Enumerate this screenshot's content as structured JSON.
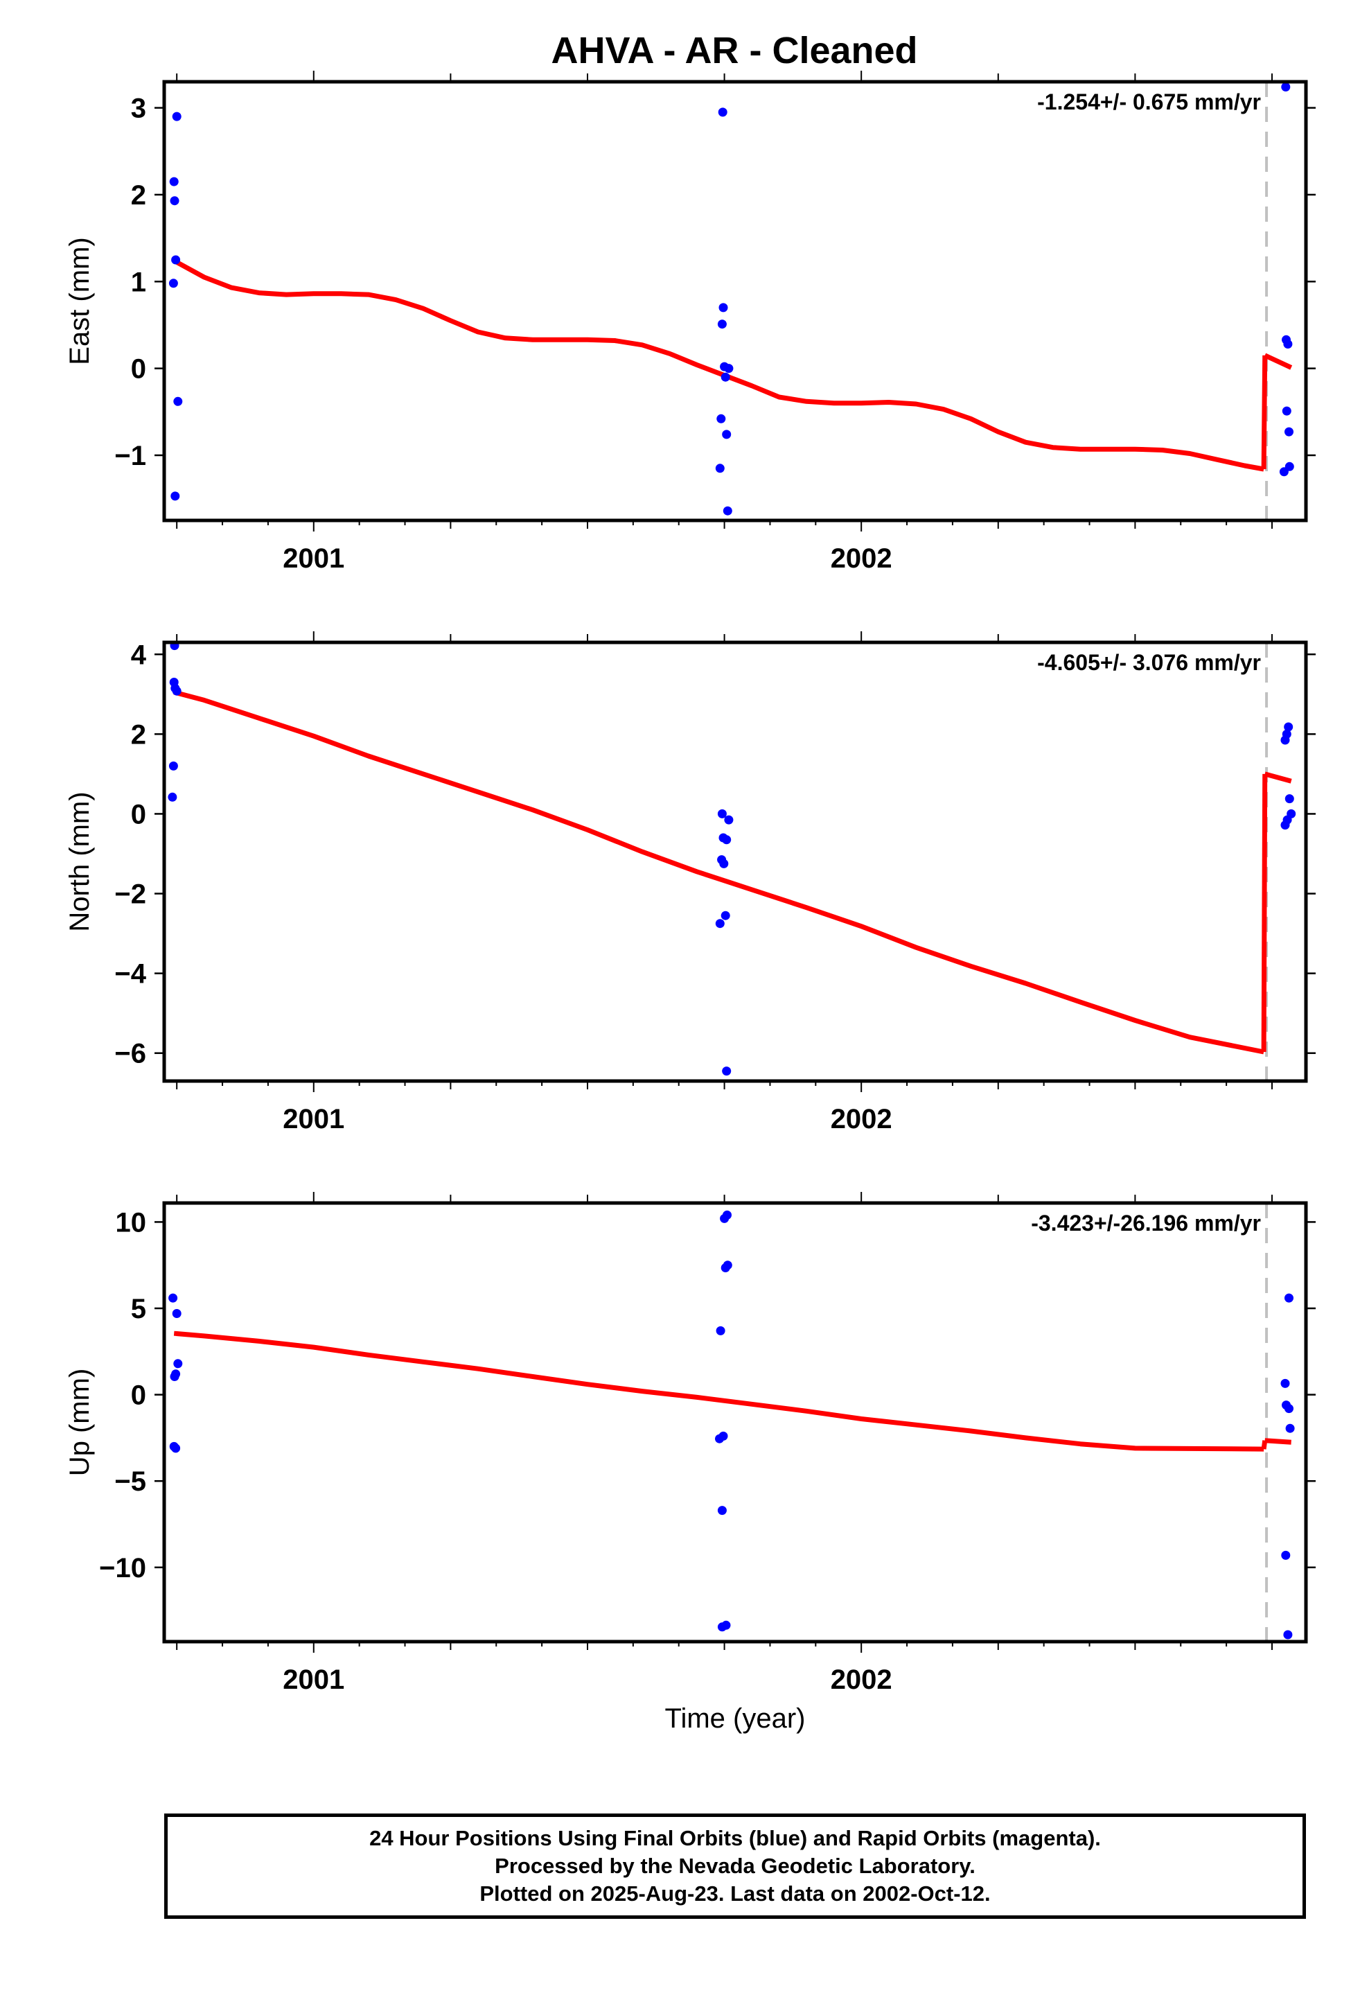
{
  "title": "AHVA  - AR - Cleaned",
  "xlabel": "Time (year)",
  "footer": {
    "line1": "24 Hour Positions Using Final Orbits (blue) and Rapid Orbits (magenta).",
    "line2": "Processed by the Nevada Geodetic Laboratory.",
    "line3": "Plotted on 2025-Aug-23. Last data on 2002-Oct-12."
  },
  "colors": {
    "points": "#0000ff",
    "fit": "#ff0000",
    "break": "#c0c0c0",
    "frame": "#000000"
  },
  "chart_data": [
    {
      "type": "scatter",
      "ylabel": "East (mm)",
      "rate_label": "-1.254+/- 0.675 mm/yr",
      "xlim": [
        2000.727,
        2002.812
      ],
      "ylim": [
        -1.75,
        3.3
      ],
      "xticks": [
        2001,
        2002
      ],
      "yticks": [
        -1,
        0,
        1,
        2,
        3
      ],
      "ytick_labels": [
        "−1",
        "0",
        "1",
        "2",
        "3"
      ],
      "break_x": 2002.74,
      "points": [
        [
          2000.745,
          2.15
        ],
        [
          2000.746,
          1.93
        ],
        [
          2000.748,
          1.25
        ],
        [
          2000.744,
          0.98
        ],
        [
          2000.75,
          2.9
        ],
        [
          2000.752,
          -0.38
        ],
        [
          2000.747,
          -1.47
        ],
        [
          2001.747,
          2.95
        ],
        [
          2001.748,
          0.7
        ],
        [
          2001.746,
          0.51
        ],
        [
          2001.75,
          0.02
        ],
        [
          2001.752,
          -0.1
        ],
        [
          2001.758,
          0.0
        ],
        [
          2001.744,
          -0.58
        ],
        [
          2001.754,
          -0.76
        ],
        [
          2001.742,
          -1.15
        ],
        [
          2001.756,
          -1.64
        ],
        [
          2002.775,
          3.24
        ],
        [
          2002.776,
          0.33
        ],
        [
          2002.779,
          0.28
        ],
        [
          2002.777,
          -0.49
        ],
        [
          2002.781,
          -0.73
        ],
        [
          2002.772,
          -1.19
        ],
        [
          2002.782,
          -1.13
        ]
      ],
      "fit_segments": [
        [
          [
            2000.745,
            1.24
          ],
          [
            2000.8,
            1.05
          ],
          [
            2000.85,
            0.93
          ],
          [
            2000.9,
            0.87
          ],
          [
            2000.95,
            0.85
          ],
          [
            2001.0,
            0.86
          ],
          [
            2001.05,
            0.86
          ],
          [
            2001.1,
            0.85
          ],
          [
            2001.15,
            0.79
          ],
          [
            2001.2,
            0.69
          ],
          [
            2001.25,
            0.55
          ],
          [
            2001.3,
            0.42
          ],
          [
            2001.35,
            0.35
          ],
          [
            2001.4,
            0.33
          ],
          [
            2001.45,
            0.33
          ],
          [
            2001.5,
            0.33
          ],
          [
            2001.55,
            0.32
          ],
          [
            2001.6,
            0.27
          ],
          [
            2001.65,
            0.17
          ],
          [
            2001.7,
            0.04
          ],
          [
            2001.75,
            -0.08
          ],
          [
            2001.8,
            -0.2
          ],
          [
            2001.85,
            -0.33
          ],
          [
            2001.9,
            -0.38
          ],
          [
            2001.95,
            -0.4
          ],
          [
            2002.0,
            -0.4
          ],
          [
            2002.05,
            -0.39
          ],
          [
            2002.1,
            -0.41
          ],
          [
            2002.15,
            -0.47
          ],
          [
            2002.2,
            -0.58
          ],
          [
            2002.25,
            -0.73
          ],
          [
            2002.3,
            -0.85
          ],
          [
            2002.35,
            -0.91
          ],
          [
            2002.4,
            -0.93
          ],
          [
            2002.45,
            -0.93
          ],
          [
            2002.5,
            -0.93
          ],
          [
            2002.55,
            -0.94
          ],
          [
            2002.6,
            -0.98
          ],
          [
            2002.65,
            -1.05
          ],
          [
            2002.7,
            -1.12
          ],
          [
            2002.735,
            -1.16
          ]
        ],
        [
          [
            2002.737,
            0.15
          ],
          [
            2002.785,
            0.01
          ]
        ]
      ]
    },
    {
      "type": "scatter",
      "ylabel": "North (mm)",
      "rate_label": "-4.605+/- 3.076 mm/yr",
      "xlim": [
        2000.727,
        2002.812
      ],
      "ylim": [
        -6.7,
        4.3
      ],
      "xticks": [
        2001,
        2002
      ],
      "yticks": [
        -6,
        -4,
        -2,
        0,
        2,
        4
      ],
      "ytick_labels": [
        "−6",
        "−4",
        "−2",
        "0",
        "2",
        "4"
      ],
      "break_x": 2002.74,
      "points": [
        [
          2000.746,
          4.22
        ],
        [
          2000.745,
          3.3
        ],
        [
          2000.747,
          3.15
        ],
        [
          2000.75,
          3.08
        ],
        [
          2000.744,
          1.2
        ],
        [
          2000.742,
          0.42
        ],
        [
          2001.746,
          0.0
        ],
        [
          2001.748,
          -0.6
        ],
        [
          2001.754,
          -0.65
        ],
        [
          2001.758,
          -0.15
        ],
        [
          2001.745,
          -1.15
        ],
        [
          2001.749,
          -1.25
        ],
        [
          2001.742,
          -2.75
        ],
        [
          2001.752,
          -2.55
        ],
        [
          2001.754,
          -6.45
        ],
        [
          2002.774,
          1.85
        ],
        [
          2002.777,
          2.0
        ],
        [
          2002.78,
          2.18
        ],
        [
          2002.782,
          0.38
        ],
        [
          2002.785,
          0.0
        ],
        [
          2002.778,
          -0.15
        ],
        [
          2002.774,
          -0.28
        ]
      ],
      "fit_segments": [
        [
          [
            2000.745,
            3.05
          ],
          [
            2000.8,
            2.85
          ],
          [
            2000.9,
            2.4
          ],
          [
            2001.0,
            1.95
          ],
          [
            2001.1,
            1.45
          ],
          [
            2001.2,
            1.0
          ],
          [
            2001.3,
            0.55
          ],
          [
            2001.4,
            0.1
          ],
          [
            2001.5,
            -0.4
          ],
          [
            2001.6,
            -0.95
          ],
          [
            2001.7,
            -1.45
          ],
          [
            2001.8,
            -1.9
          ],
          [
            2001.9,
            -2.35
          ],
          [
            2002.0,
            -2.82
          ],
          [
            2002.1,
            -3.35
          ],
          [
            2002.2,
            -3.82
          ],
          [
            2002.3,
            -4.25
          ],
          [
            2002.4,
            -4.72
          ],
          [
            2002.5,
            -5.18
          ],
          [
            2002.6,
            -5.6
          ],
          [
            2002.735,
            -5.97
          ]
        ],
        [
          [
            2002.737,
            1.0
          ],
          [
            2002.785,
            0.82
          ]
        ]
      ]
    },
    {
      "type": "scatter",
      "ylabel": "Up (mm)",
      "rate_label": "-3.423+/-26.196 mm/yr",
      "xlim": [
        2000.727,
        2002.812
      ],
      "ylim": [
        -14.3,
        11.1
      ],
      "xticks": [
        2001,
        2002
      ],
      "yticks": [
        -10,
        -5,
        0,
        5,
        10
      ],
      "ytick_labels": [
        "−10",
        "−5",
        "0",
        "5",
        "10"
      ],
      "break_x": 2002.74,
      "points": [
        [
          2000.743,
          5.6
        ],
        [
          2000.75,
          4.7
        ],
        [
          2000.752,
          1.8
        ],
        [
          2000.748,
          1.2
        ],
        [
          2000.746,
          1.05
        ],
        [
          2000.745,
          -3.0
        ],
        [
          2000.748,
          -3.1
        ],
        [
          2001.755,
          10.4
        ],
        [
          2001.75,
          10.2
        ],
        [
          2001.756,
          7.5
        ],
        [
          2001.752,
          7.35
        ],
        [
          2001.743,
          3.7
        ],
        [
          2001.748,
          -2.4
        ],
        [
          2001.741,
          -2.55
        ],
        [
          2001.746,
          -6.7
        ],
        [
          2001.753,
          -13.35
        ],
        [
          2001.746,
          -13.45
        ],
        [
          2002.781,
          5.6
        ],
        [
          2002.774,
          0.65
        ],
        [
          2002.776,
          -0.6
        ],
        [
          2002.781,
          -0.8
        ],
        [
          2002.783,
          -1.95
        ],
        [
          2002.775,
          -9.3
        ],
        [
          2002.779,
          -13.9
        ]
      ],
      "fit_segments": [
        [
          [
            2000.745,
            3.55
          ],
          [
            2000.8,
            3.4
          ],
          [
            2000.9,
            3.1
          ],
          [
            2001.0,
            2.75
          ],
          [
            2001.1,
            2.3
          ],
          [
            2001.2,
            1.9
          ],
          [
            2001.3,
            1.5
          ],
          [
            2001.4,
            1.05
          ],
          [
            2001.5,
            0.6
          ],
          [
            2001.6,
            0.2
          ],
          [
            2001.7,
            -0.15
          ],
          [
            2001.8,
            -0.55
          ],
          [
            2001.9,
            -0.95
          ],
          [
            2002.0,
            -1.4
          ],
          [
            2002.1,
            -1.75
          ],
          [
            2002.2,
            -2.1
          ],
          [
            2002.3,
            -2.5
          ],
          [
            2002.4,
            -2.85
          ],
          [
            2002.5,
            -3.1
          ],
          [
            2002.735,
            -3.15
          ]
        ],
        [
          [
            2002.737,
            -2.65
          ],
          [
            2002.785,
            -2.75
          ]
        ]
      ]
    }
  ]
}
